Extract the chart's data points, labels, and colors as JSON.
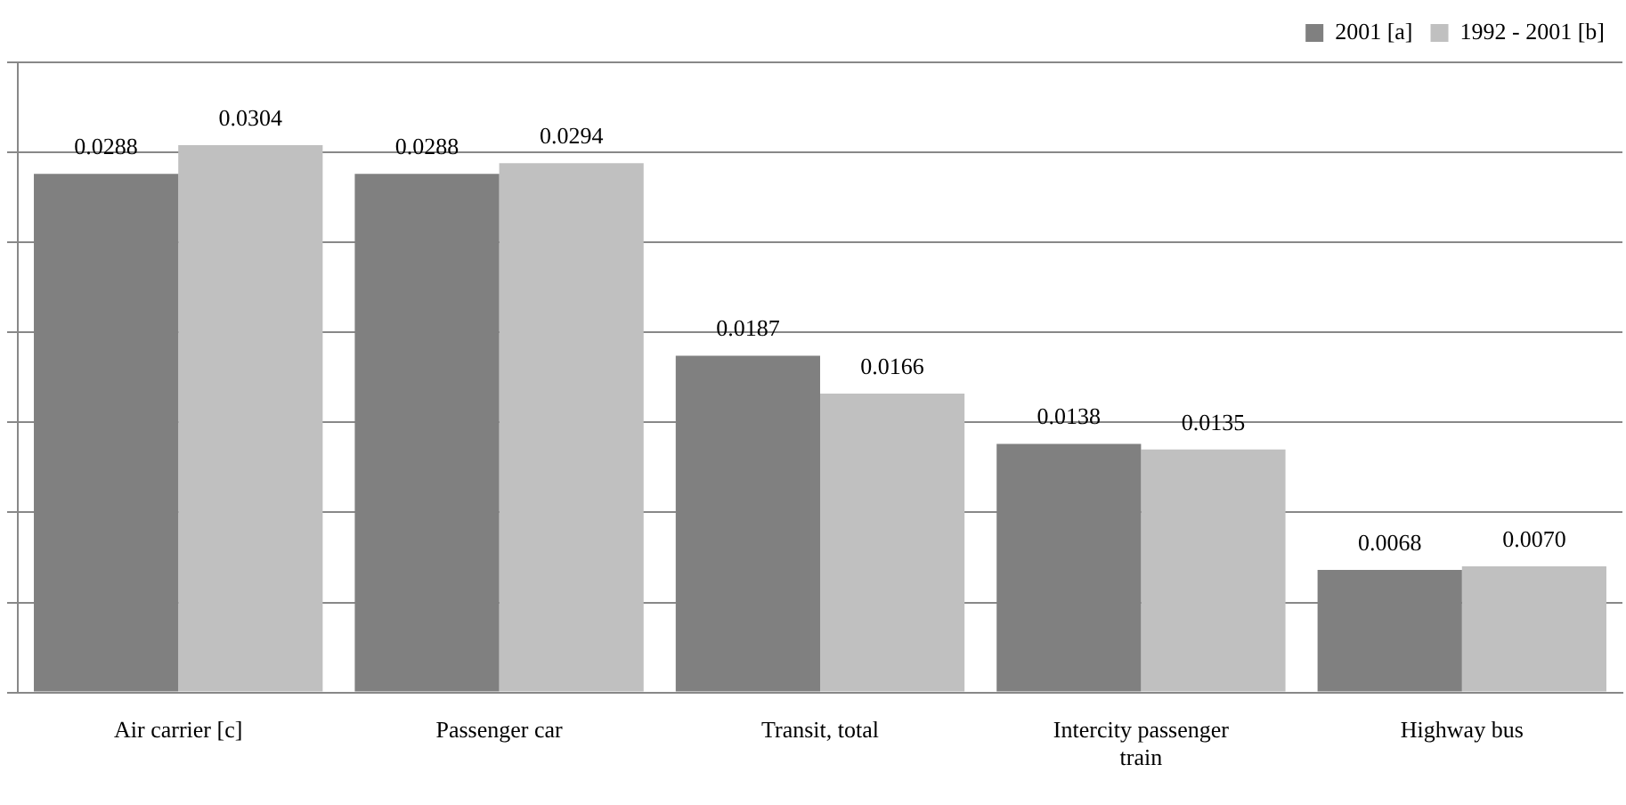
{
  "chart_data": {
    "type": "bar",
    "categories": [
      "Air carrier [c]",
      "Passenger car",
      "Transit, total",
      "Intercity passenger train",
      "Highway bus"
    ],
    "series": [
      {
        "name": "2001 [a]",
        "color": "#808080",
        "values": [
          0.0288,
          0.0288,
          0.0187,
          0.0138,
          0.0068
        ],
        "value_labels": [
          "0.0288",
          "0.0288",
          "0.0187",
          "0.0138",
          "0.0068"
        ]
      },
      {
        "name": "1992 - 2001 [b]",
        "color": "#c0c0c0",
        "values": [
          0.0304,
          0.0294,
          0.0166,
          0.0135,
          0.007
        ],
        "value_labels": [
          "0.0304",
          "0.0294",
          "0.0166",
          "0.0135",
          "0.0070"
        ]
      }
    ],
    "ylim": [
      0,
      0.035
    ],
    "yticks": [
      {
        "value": 0,
        "label": null
      },
      {
        "value": 0.005,
        "label": null
      },
      {
        "value": 0.01,
        "label": null
      },
      {
        "value": 0.015,
        "label": null
      },
      {
        "value": 0.02,
        "label": null
      },
      {
        "value": 0.025,
        "label": null
      },
      {
        "value": 0.03,
        "label": null
      },
      {
        "value": 0.035,
        "label": null
      }
    ],
    "grid": "y",
    "legend": "top right",
    "tick_labels": "x"
  }
}
